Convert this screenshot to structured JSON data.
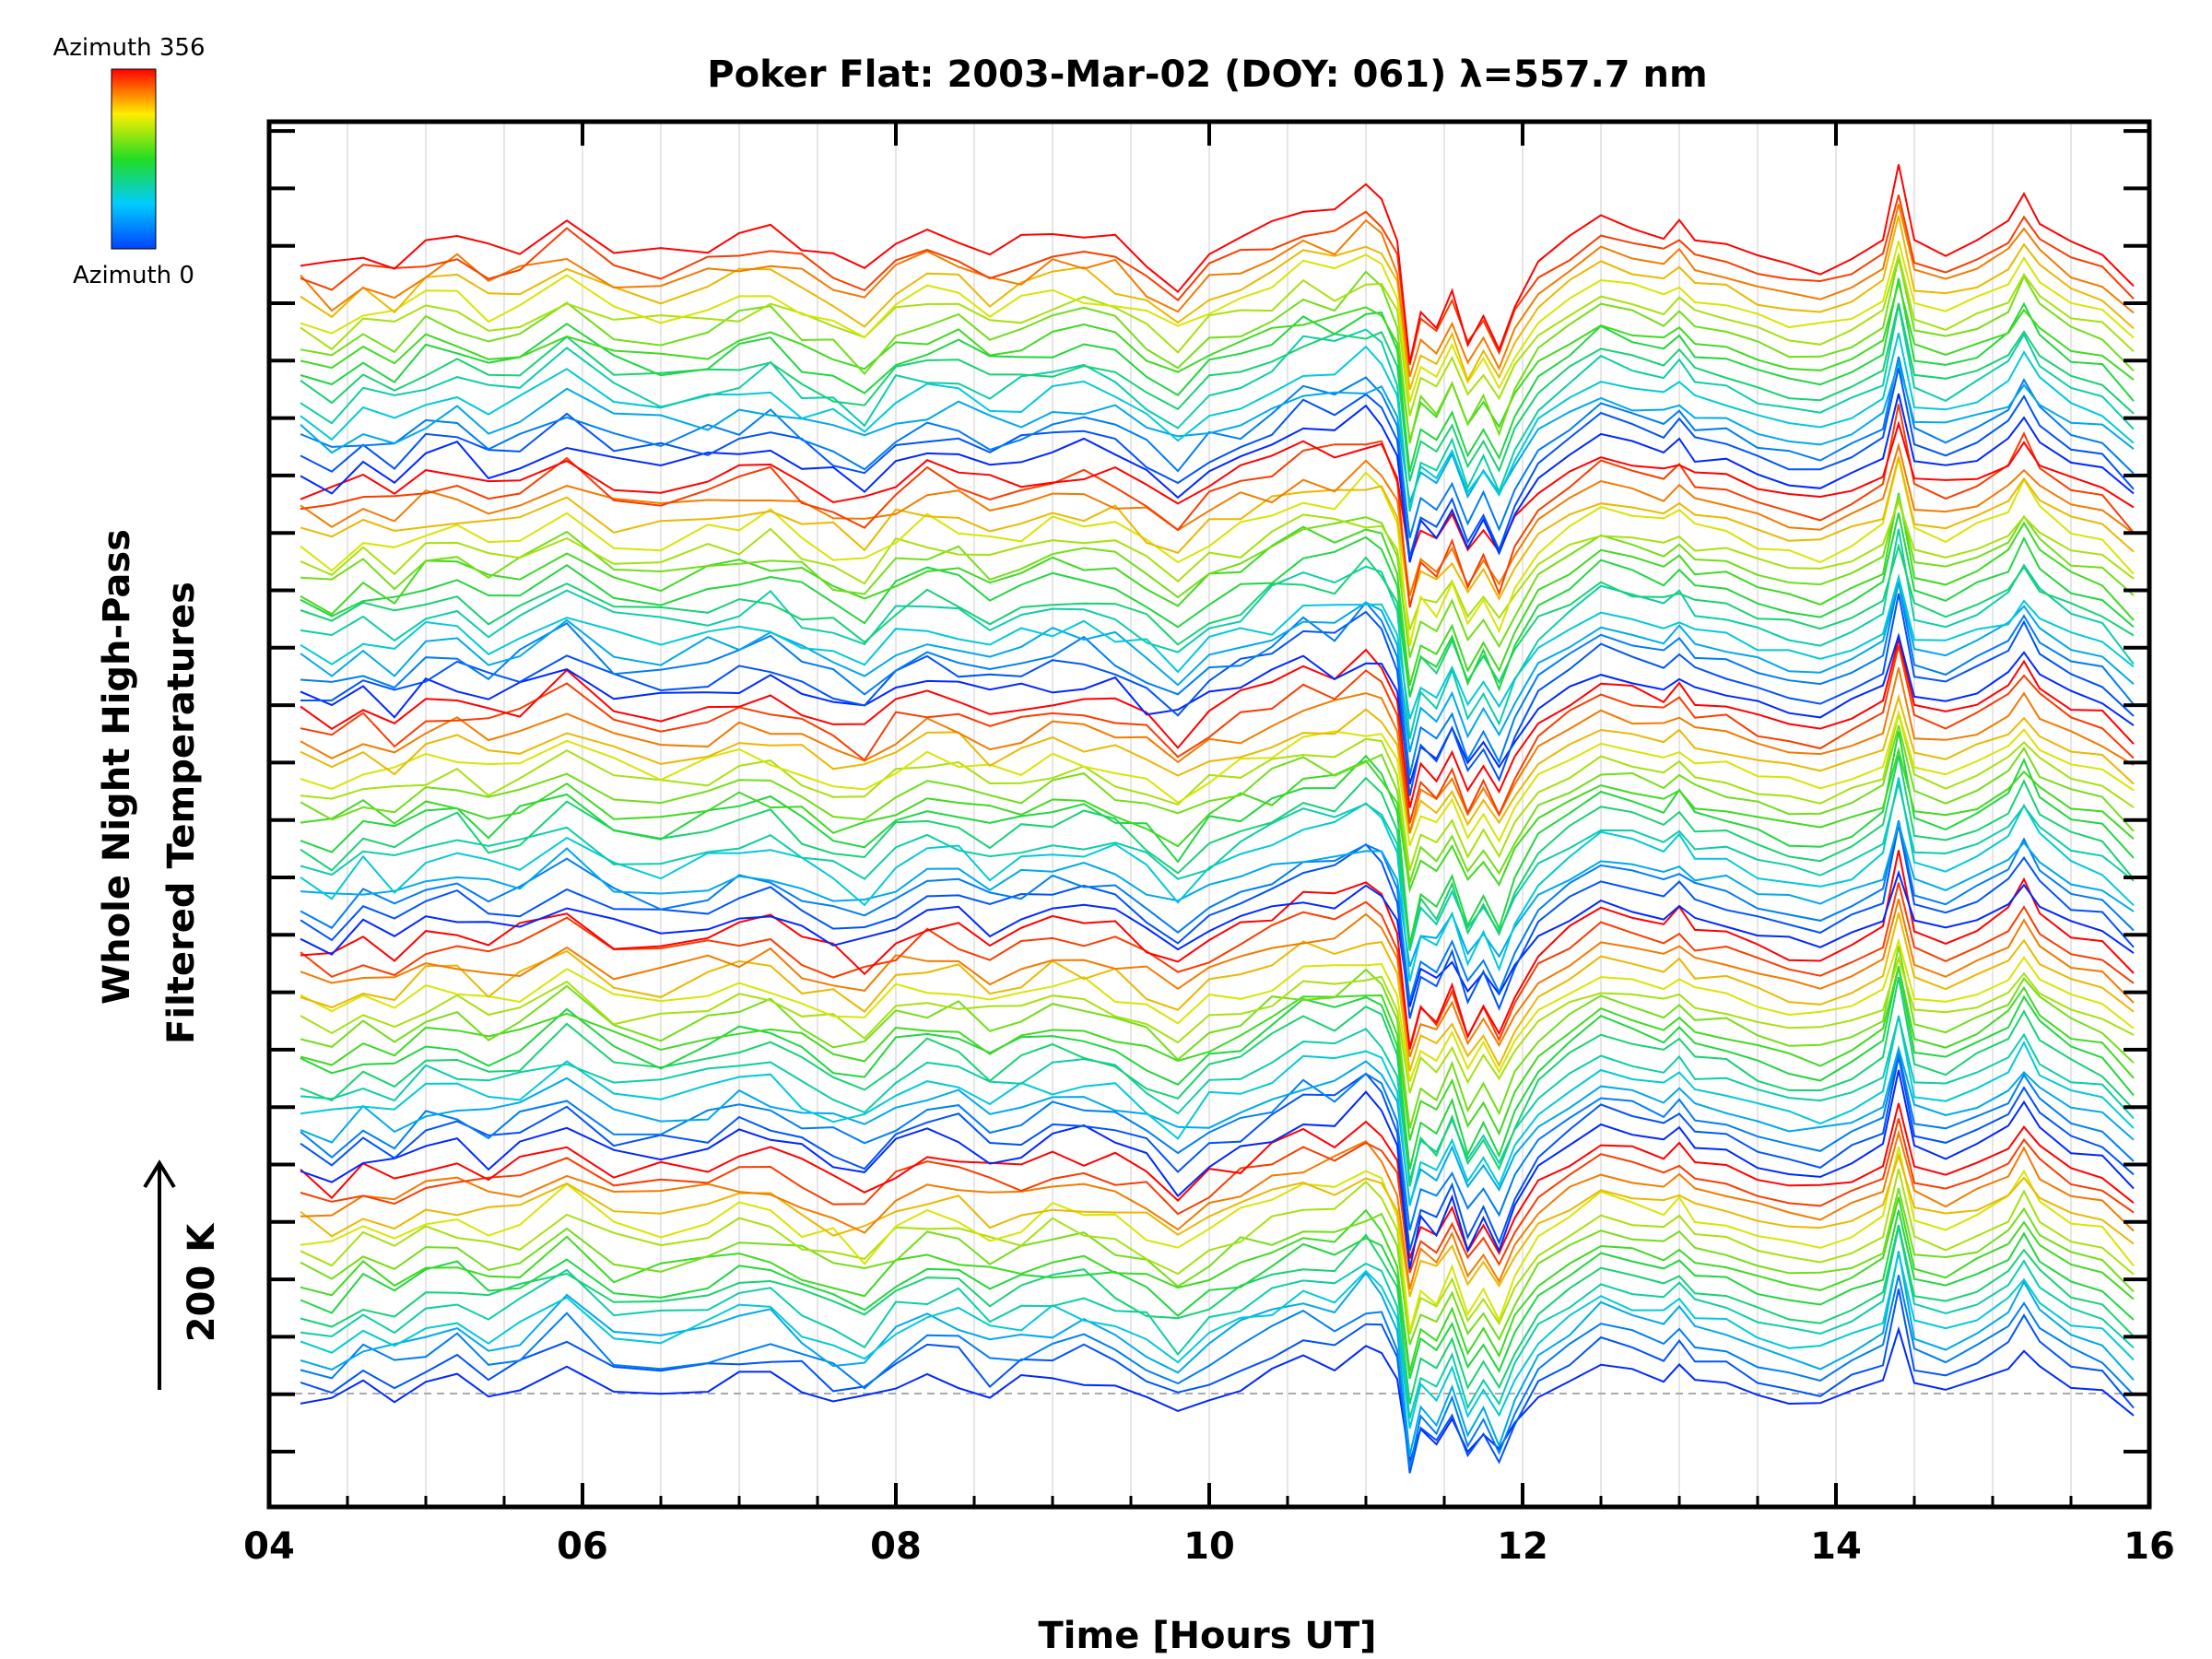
{
  "chart_data": {
    "type": "line",
    "title": "Poker Flat: 2003-Mar-02 (DOY: 061) λ=557.7 nm",
    "xlabel": "Time [Hours UT]",
    "ylabel_lines": [
      "Whole Night High-Pass",
      "Filtered Temperatures"
    ],
    "x_ticks": [
      "04",
      "06",
      "08",
      "10",
      "12",
      "14",
      "16"
    ],
    "xlim": [
      4,
      16
    ],
    "scale_bar_label": "200 K",
    "scale_bar_kelvin": 200,
    "colorbar": {
      "top_label": "Azimuth 356",
      "bottom_label": "Azimuth 0",
      "colors": [
        "#ff0000",
        "#ffff00",
        "#00ff00",
        "#00ffff",
        "#0000ff"
      ]
    },
    "grid": "vertical",
    "series_count": 80,
    "series_description_note": "80 stacked, vertically offset, high-pass filtered temperature traces colored by azimuth (0 blue -> 356 red); values are relative to each trace baseline",
    "common_features": {
      "sample_hours": [
        4.2,
        4.4,
        4.6,
        4.8,
        5.0,
        5.2,
        5.4,
        5.6,
        5.9,
        6.2,
        6.5,
        6.8,
        7.0,
        7.2,
        7.4,
        7.6,
        7.8,
        8.0,
        8.2,
        8.4,
        8.6,
        8.8,
        9.0,
        9.2,
        9.4,
        9.6,
        9.8,
        10.0,
        10.2,
        10.4,
        10.6,
        10.8,
        11.0,
        11.1,
        11.2,
        11.28,
        11.35,
        11.45,
        11.55,
        11.65,
        11.75,
        11.85,
        11.95,
        12.1,
        12.3,
        12.5,
        12.7,
        12.9,
        13.0,
        13.1,
        13.3,
        13.5,
        13.7,
        13.9,
        14.1,
        14.3,
        14.4,
        14.5,
        14.7,
        14.9,
        15.1,
        15.2,
        15.3,
        15.5,
        15.7,
        15.9
      ],
      "relative_temperature_K": [
        0,
        -15,
        10,
        -5,
        20,
        25,
        5,
        15,
        45,
        10,
        5,
        15,
        25,
        30,
        10,
        -5,
        -20,
        15,
        30,
        25,
        5,
        15,
        25,
        30,
        20,
        0,
        -25,
        5,
        20,
        35,
        55,
        50,
        70,
        60,
        20,
        -110,
        -60,
        -75,
        -40,
        -90,
        -60,
        -95,
        -50,
        -5,
        20,
        45,
        35,
        25,
        40,
        20,
        15,
        0,
        -10,
        -15,
        0,
        20,
        100,
        15,
        5,
        20,
        40,
        70,
        40,
        15,
        5,
        -30
      ]
    }
  }
}
